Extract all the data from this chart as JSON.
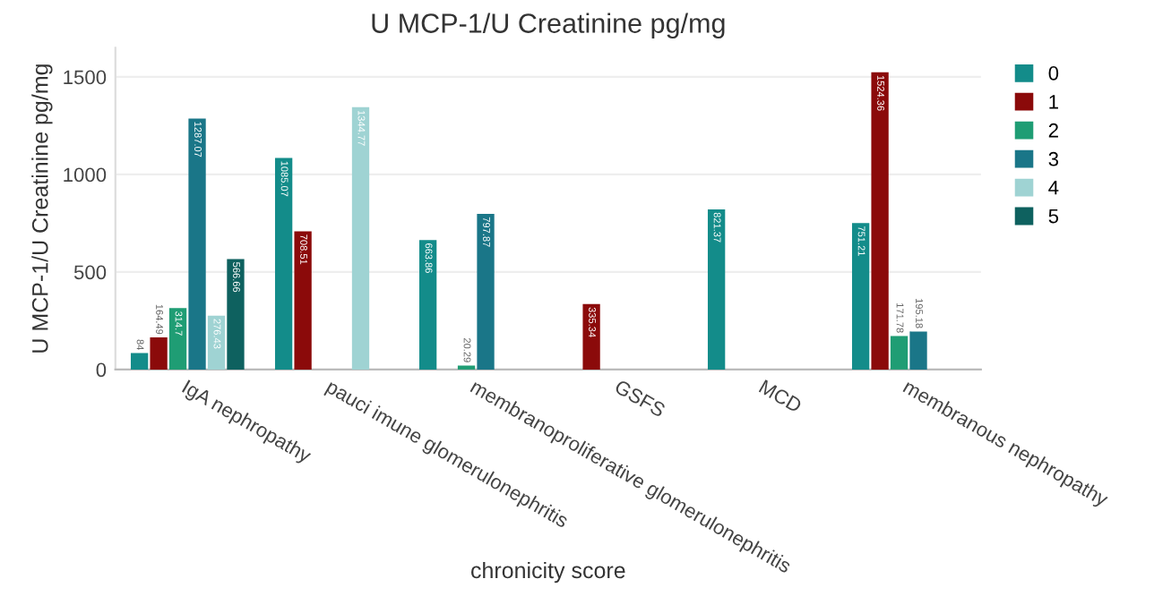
{
  "chart_data": {
    "type": "bar",
    "title": "U MCP-1/U Creatinine pg/mg",
    "xlabel": "chronicity score",
    "ylabel": "U MCP-1/U Creatinine pg/mg",
    "categories": [
      "IgA nephropathy",
      "pauci imune glomerulonephritis",
      "membranoproliferative glomerulonephritis",
      "GSFS",
      "MCD",
      "membranous nephropathy"
    ],
    "series": [
      {
        "name": "0",
        "color": "#138c8a",
        "values": [
          84,
          1085.07,
          663.86,
          null,
          821.37,
          751.21
        ]
      },
      {
        "name": "1",
        "color": "#8b0a0a",
        "values": [
          164.49,
          708.51,
          null,
          335.34,
          null,
          1524.36
        ]
      },
      {
        "name": "2",
        "color": "#1f9d74",
        "values": [
          314.7,
          null,
          20.29,
          null,
          null,
          171.78
        ]
      },
      {
        "name": "3",
        "color": "#1a7688",
        "values": [
          1287.07,
          null,
          797.87,
          null,
          null,
          195.18
        ]
      },
      {
        "name": "4",
        "color": "#9fd3d3",
        "values": [
          276.43,
          1344.77,
          null,
          null,
          null,
          null
        ]
      },
      {
        "name": "5",
        "color": "#0e615f",
        "values": [
          566.66,
          null,
          null,
          null,
          null,
          null
        ]
      }
    ],
    "ylim": [
      0,
      1650
    ],
    "yticks": [
      0,
      500,
      1000,
      1500
    ],
    "grid": "y",
    "legend": "top right",
    "data_labels": true
  }
}
